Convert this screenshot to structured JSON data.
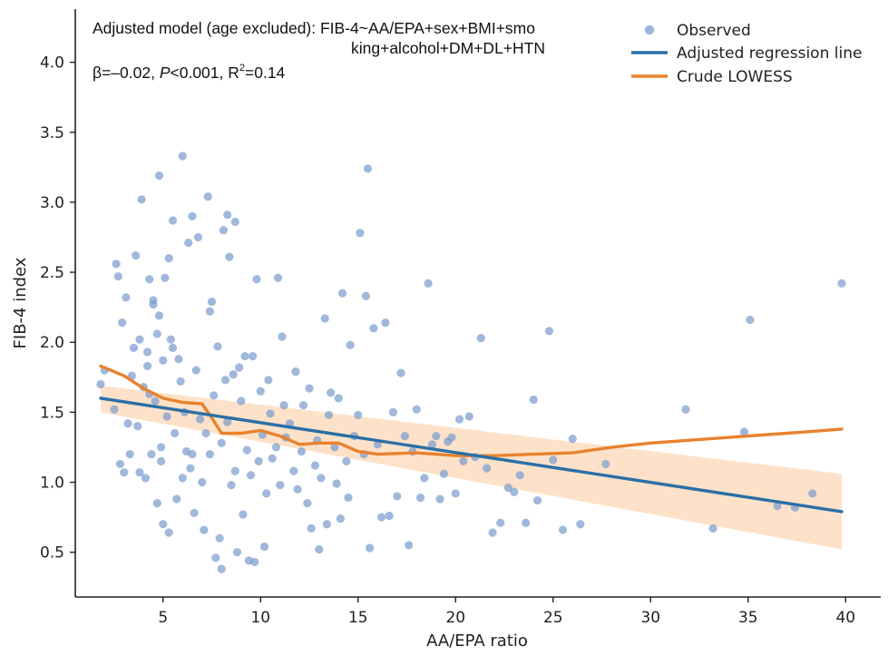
{
  "chart_data": {
    "type": "scatter",
    "xlabel": "AA/EPA ratio",
    "ylabel": "FIB-4 index",
    "xlim": [
      0.5,
      41.8
    ],
    "ylim": [
      0.18,
      4.38
    ],
    "xticks": [
      5,
      10,
      15,
      20,
      25,
      30,
      35,
      40
    ],
    "yticks": [
      0.5,
      1.0,
      1.5,
      2.0,
      2.5,
      3.0,
      3.5,
      4.0
    ],
    "xtick_labels": [
      "5",
      "10",
      "15",
      "20",
      "25",
      "30",
      "35",
      "40"
    ],
    "ytick_labels": [
      "0.5",
      "1.0",
      "1.5",
      "2.0",
      "2.5",
      "3.0",
      "3.5",
      "4.0"
    ],
    "grid": false,
    "legend_position": "top-right",
    "annotations": {
      "model_line1": "Adjusted model (age excluded): FIB-4~AA/EPA+sex+BMI+smo",
      "model_line2": "king+alcohol+DM+DL+HTN",
      "stats_beta": "β=–0.02, ",
      "stats_p": "P",
      "stats_p_rest": "<0.001, R",
      "stats_r_sup": "2",
      "stats_r_rest": "=0.14"
    },
    "colors": {
      "observed": "#7b9ccd",
      "regression": "#2a6fa6",
      "lowess": "#e8822f",
      "ci_band": "#fddfc3"
    },
    "series": [
      {
        "name": "Observed",
        "kind": "points",
        "points": [
          [
            1.8,
            1.7
          ],
          [
            2.0,
            1.8
          ],
          [
            2.5,
            1.52
          ],
          [
            2.6,
            2.56
          ],
          [
            2.7,
            2.47
          ],
          [
            2.8,
            1.13
          ],
          [
            2.9,
            2.14
          ],
          [
            3.0,
            1.07
          ],
          [
            3.1,
            2.32
          ],
          [
            3.2,
            1.42
          ],
          [
            3.3,
            1.2
          ],
          [
            3.4,
            1.76
          ],
          [
            3.5,
            1.96
          ],
          [
            3.6,
            2.62
          ],
          [
            3.7,
            1.4
          ],
          [
            3.8,
            1.07
          ],
          [
            3.8,
            2.02
          ],
          [
            3.9,
            3.02
          ],
          [
            4.0,
            1.68
          ],
          [
            4.1,
            1.03
          ],
          [
            4.2,
            1.93
          ],
          [
            4.2,
            1.83
          ],
          [
            4.3,
            2.45
          ],
          [
            4.3,
            1.63
          ],
          [
            4.4,
            1.2
          ],
          [
            4.5,
            2.27
          ],
          [
            4.5,
            2.3
          ],
          [
            4.6,
            1.58
          ],
          [
            4.7,
            2.06
          ],
          [
            4.7,
            0.85
          ],
          [
            4.8,
            3.19
          ],
          [
            4.8,
            2.19
          ],
          [
            4.9,
            1.15
          ],
          [
            4.9,
            1.25
          ],
          [
            5.0,
            0.7
          ],
          [
            5.0,
            1.87
          ],
          [
            5.1,
            2.46
          ],
          [
            5.2,
            1.47
          ],
          [
            5.3,
            0.64
          ],
          [
            5.3,
            2.6
          ],
          [
            5.4,
            2.02
          ],
          [
            5.5,
            2.87
          ],
          [
            5.5,
            1.96
          ],
          [
            5.6,
            1.35
          ],
          [
            5.7,
            0.88
          ],
          [
            5.8,
            1.88
          ],
          [
            5.9,
            1.72
          ],
          [
            6.0,
            3.33
          ],
          [
            6.0,
            1.03
          ],
          [
            6.1,
            1.5
          ],
          [
            6.2,
            1.22
          ],
          [
            6.3,
            2.71
          ],
          [
            6.4,
            1.1
          ],
          [
            6.5,
            2.9
          ],
          [
            6.5,
            1.2
          ],
          [
            6.6,
            0.78
          ],
          [
            6.7,
            1.8
          ],
          [
            6.8,
            2.75
          ],
          [
            6.9,
            1.45
          ],
          [
            7.0,
            1.0
          ],
          [
            7.1,
            0.66
          ],
          [
            7.2,
            1.35
          ],
          [
            7.3,
            3.04
          ],
          [
            7.4,
            2.22
          ],
          [
            7.4,
            1.2
          ],
          [
            7.5,
            2.29
          ],
          [
            7.6,
            1.62
          ],
          [
            7.7,
            0.46
          ],
          [
            7.8,
            1.97
          ],
          [
            7.9,
            0.6
          ],
          [
            8.0,
            0.38
          ],
          [
            8.0,
            1.28
          ],
          [
            8.1,
            2.8
          ],
          [
            8.2,
            1.73
          ],
          [
            8.3,
            1.43
          ],
          [
            8.3,
            2.91
          ],
          [
            8.4,
            2.61
          ],
          [
            8.5,
            0.98
          ],
          [
            8.6,
            1.77
          ],
          [
            8.7,
            2.86
          ],
          [
            8.7,
            1.08
          ],
          [
            8.8,
            0.5
          ],
          [
            8.9,
            1.82
          ],
          [
            9.0,
            1.58
          ],
          [
            9.1,
            0.77
          ],
          [
            9.2,
            1.9
          ],
          [
            9.3,
            1.23
          ],
          [
            9.4,
            0.44
          ],
          [
            9.5,
            1.05
          ],
          [
            9.6,
            1.9
          ],
          [
            9.7,
            0.43
          ],
          [
            9.8,
            2.45
          ],
          [
            9.9,
            1.15
          ],
          [
            10.0,
            1.65
          ],
          [
            10.1,
            1.34
          ],
          [
            10.2,
            0.54
          ],
          [
            10.3,
            0.92
          ],
          [
            10.4,
            1.73
          ],
          [
            10.5,
            1.49
          ],
          [
            10.6,
            1.17
          ],
          [
            10.8,
            1.25
          ],
          [
            10.9,
            2.46
          ],
          [
            11.0,
            0.98
          ],
          [
            11.1,
            2.04
          ],
          [
            11.2,
            1.55
          ],
          [
            11.3,
            1.32
          ],
          [
            11.5,
            1.42
          ],
          [
            11.7,
            1.08
          ],
          [
            11.8,
            1.79
          ],
          [
            11.9,
            0.95
          ],
          [
            12.1,
            1.22
          ],
          [
            12.2,
            1.55
          ],
          [
            12.4,
            0.85
          ],
          [
            12.5,
            1.67
          ],
          [
            12.6,
            0.67
          ],
          [
            12.8,
            1.12
          ],
          [
            12.9,
            1.3
          ],
          [
            13.0,
            0.52
          ],
          [
            13.1,
            1.03
          ],
          [
            13.3,
            2.17
          ],
          [
            13.4,
            0.7
          ],
          [
            13.5,
            1.48
          ],
          [
            13.6,
            1.64
          ],
          [
            13.8,
            1.25
          ],
          [
            13.9,
            0.99
          ],
          [
            14.0,
            1.6
          ],
          [
            14.1,
            0.74
          ],
          [
            14.2,
            2.35
          ],
          [
            14.4,
            1.15
          ],
          [
            14.5,
            0.89
          ],
          [
            14.6,
            1.98
          ],
          [
            14.8,
            1.33
          ],
          [
            15.0,
            1.48
          ],
          [
            15.1,
            2.78
          ],
          [
            15.3,
            1.2
          ],
          [
            15.4,
            2.33
          ],
          [
            15.5,
            3.24
          ],
          [
            15.6,
            0.53
          ],
          [
            15.8,
            2.1
          ],
          [
            16.0,
            1.27
          ],
          [
            16.2,
            0.75
          ],
          [
            16.4,
            2.14
          ],
          [
            16.6,
            0.76
          ],
          [
            16.8,
            1.5
          ],
          [
            17.0,
            0.9
          ],
          [
            17.2,
            1.78
          ],
          [
            17.4,
            1.33
          ],
          [
            17.6,
            0.55
          ],
          [
            17.8,
            1.22
          ],
          [
            18.0,
            1.52
          ],
          [
            18.2,
            0.89
          ],
          [
            18.4,
            1.03
          ],
          [
            18.6,
            2.42
          ],
          [
            18.8,
            1.27
          ],
          [
            19.0,
            1.33
          ],
          [
            19.2,
            0.88
          ],
          [
            19.4,
            1.06
          ],
          [
            19.6,
            1.29
          ],
          [
            19.8,
            1.32
          ],
          [
            20.0,
            0.92
          ],
          [
            20.2,
            1.45
          ],
          [
            20.4,
            1.15
          ],
          [
            20.7,
            1.47
          ],
          [
            21.0,
            1.18
          ],
          [
            21.3,
            2.03
          ],
          [
            21.6,
            1.1
          ],
          [
            21.9,
            0.64
          ],
          [
            22.3,
            0.71
          ],
          [
            22.7,
            0.96
          ],
          [
            23.0,
            0.93
          ],
          [
            23.3,
            1.05
          ],
          [
            23.6,
            0.71
          ],
          [
            24.0,
            1.59
          ],
          [
            24.2,
            0.87
          ],
          [
            24.8,
            2.08
          ],
          [
            25.0,
            1.16
          ],
          [
            25.5,
            0.66
          ],
          [
            26.0,
            1.31
          ],
          [
            26.4,
            0.7
          ],
          [
            27.7,
            1.13
          ],
          [
            31.8,
            1.52
          ],
          [
            33.2,
            0.67
          ],
          [
            34.8,
            1.36
          ],
          [
            35.1,
            2.16
          ],
          [
            36.5,
            0.83
          ],
          [
            37.4,
            0.82
          ],
          [
            38.3,
            0.92
          ],
          [
            39.8,
            2.42
          ]
        ]
      },
      {
        "name": "Adjusted regression line",
        "kind": "line",
        "x": [
          1.8,
          39.8
        ],
        "y": [
          1.6,
          0.79
        ]
      },
      {
        "name": "Crude LOWESS",
        "kind": "line",
        "x": [
          1.8,
          3,
          4,
          5,
          6,
          7,
          7.5,
          8,
          9,
          10,
          11,
          12,
          13,
          14,
          15,
          16,
          18,
          20,
          22,
          24,
          26,
          28,
          30,
          32,
          34,
          36,
          38,
          39.8
        ],
        "y": [
          1.83,
          1.76,
          1.67,
          1.6,
          1.57,
          1.56,
          1.46,
          1.35,
          1.35,
          1.37,
          1.33,
          1.27,
          1.28,
          1.28,
          1.22,
          1.2,
          1.21,
          1.19,
          1.19,
          1.2,
          1.21,
          1.25,
          1.28,
          1.3,
          1.32,
          1.34,
          1.36,
          1.38
        ]
      },
      {
        "kind": "band",
        "x": [
          1.8,
          39.8
        ],
        "lower": [
          1.5,
          0.52
        ],
        "upper": [
          1.69,
          1.06
        ]
      }
    ]
  }
}
